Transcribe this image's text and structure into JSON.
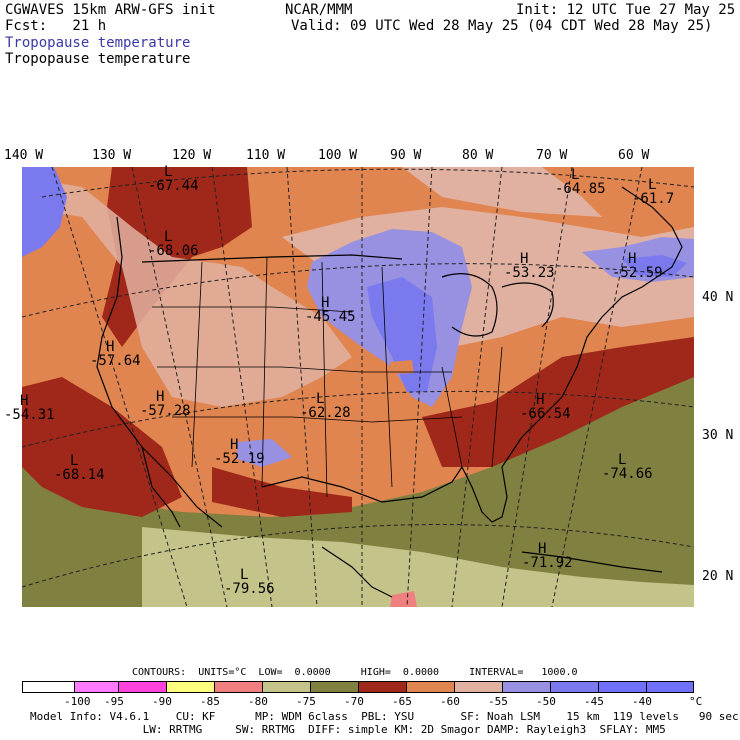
{
  "header": {
    "model": "CGWAVES 15km ARW-GFS init",
    "fcst": "Fcst:   21 h",
    "org": "NCAR/MMM",
    "init": "Init: 12 UTC Tue 27 May 25",
    "valid": "Valid: 09 UTC Wed 28 May 25 (04 CDT Wed 28 May 25)",
    "field1": "Tropopause temperature",
    "field2": "Tropopause temperature"
  },
  "longitudes": [
    "140 W",
    "130 W",
    "120 W",
    "110 W",
    "100 W",
    "90 W",
    "80 W",
    "70 W",
    "60 W"
  ],
  "latitudes": [
    "40 N",
    "30 N",
    "20 N"
  ],
  "map_labels": [
    {
      "type": "L",
      "value": "-67.44"
    },
    {
      "type": "L",
      "value": "-68.06"
    },
    {
      "type": "L",
      "value": "-64.85"
    },
    {
      "type": "L",
      "value": "-61.7"
    },
    {
      "type": "H",
      "value": "-53.23"
    },
    {
      "type": "H",
      "value": "-52.59"
    },
    {
      "type": "H",
      "value": "-45.45"
    },
    {
      "type": "H",
      "value": "-57.64"
    },
    {
      "type": "H",
      "value": "-54.31"
    },
    {
      "type": "H",
      "value": "-57.28"
    },
    {
      "type": "L",
      "value": "-62.28"
    },
    {
      "type": "H",
      "value": "-52.19"
    },
    {
      "type": "H",
      "value": "-66.54"
    },
    {
      "type": "L",
      "value": "-68.14"
    },
    {
      "type": "L",
      "value": "-74.66"
    },
    {
      "type": "H",
      "value": "-71.92"
    },
    {
      "type": "L",
      "value": "-79.56"
    }
  ],
  "legend": {
    "contours": "CONTOURS:  UNITS=°C  LOW=  0.0000     HIGH=  0.0000     INTERVAL=   1000.0",
    "unit": "°C",
    "ticks": [
      "-100",
      "-95",
      "-90",
      "-85",
      "-80",
      "-75",
      "-70",
      "-65",
      "-60",
      "-55",
      "-50",
      "-45",
      "-40"
    ],
    "colors": [
      "#ffffff",
      "#ff7aff",
      "#ff44dd",
      "#ffff80",
      "#f08080",
      "#c4c48a",
      "#808040",
      "#a0281a",
      "#e08450",
      "#e0b0a0",
      "#9890e0",
      "#7a7aee",
      "#7070f8"
    ]
  },
  "footer": {
    "line1": "Model Info: V4.6.1    CU: KF      MP: WDM 6class  PBL: YSU       SF: Noah LSM    15 km  119 levels   90 sec",
    "line2": "                 LW: RRTMG     SW: RRTMG  DIFF: simple KM: 2D Smagor DAMP: Rayleigh3  SFLAY: MM5"
  }
}
